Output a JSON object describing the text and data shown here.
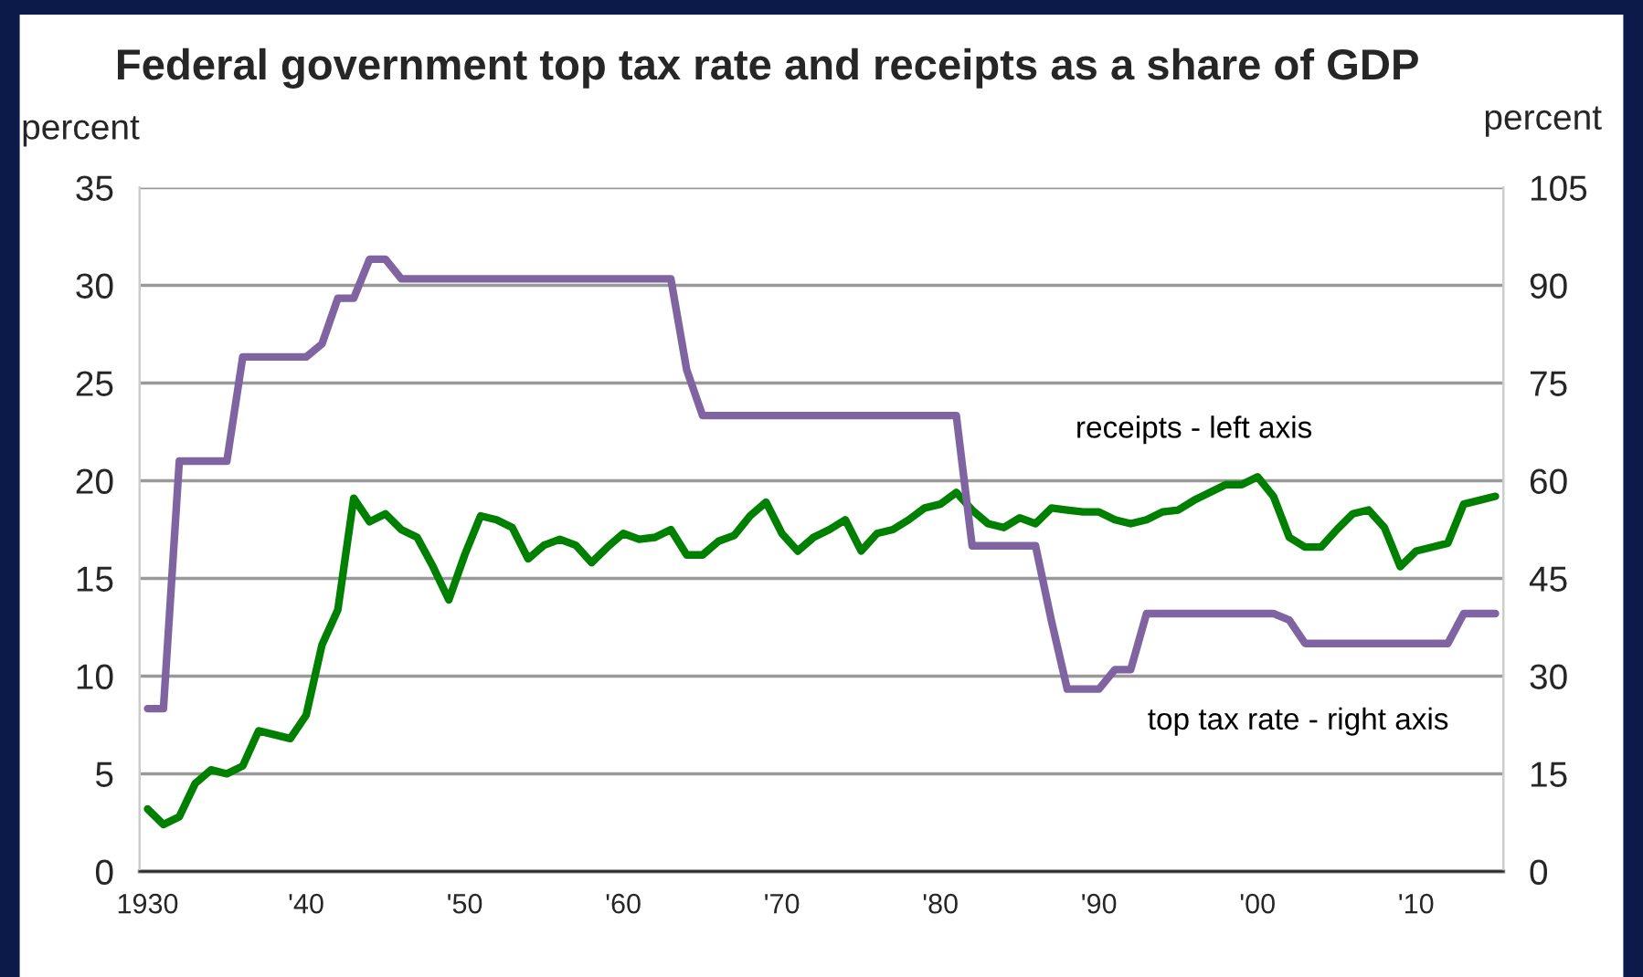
{
  "chart_data": {
    "type": "line",
    "title": "Federal government top tax rate and receipts as a share of GDP",
    "ylabel": "percent",
    "y2label": "percent",
    "x": [
      1930,
      1931,
      1932,
      1933,
      1934,
      1935,
      1936,
      1937,
      1938,
      1939,
      1940,
      1941,
      1942,
      1943,
      1944,
      1945,
      1946,
      1947,
      1948,
      1949,
      1950,
      1951,
      1952,
      1953,
      1954,
      1955,
      1956,
      1957,
      1958,
      1959,
      1960,
      1961,
      1962,
      1963,
      1964,
      1965,
      1966,
      1967,
      1968,
      1969,
      1970,
      1971,
      1972,
      1973,
      1974,
      1975,
      1976,
      1977,
      1978,
      1979,
      1980,
      1981,
      1982,
      1983,
      1984,
      1985,
      1986,
      1987,
      1988,
      1989,
      1990,
      1991,
      1992,
      1993,
      1994,
      1995,
      1996,
      1997,
      1998,
      1999,
      2000,
      2001,
      2002,
      2003,
      2004,
      2005,
      2006,
      2007,
      2008,
      2009,
      2010,
      2011,
      2012,
      2013,
      2014,
      2015
    ],
    "series": [
      {
        "name": "receipts - left axis",
        "color": "#008000",
        "values": [
          3.2,
          2.4,
          2.8,
          4.5,
          5.2,
          5.0,
          5.4,
          7.2,
          7.0,
          6.8,
          8.0,
          11.6,
          13.4,
          19.1,
          17.9,
          18.3,
          17.5,
          17.1,
          15.6,
          13.9,
          16.2,
          18.2,
          18.0,
          17.6,
          16.0,
          16.7,
          17.0,
          16.7,
          15.8,
          16.6,
          17.3,
          17.0,
          17.1,
          17.5,
          16.2,
          16.2,
          16.9,
          17.2,
          18.2,
          18.9,
          17.3,
          16.4,
          17.1,
          17.5,
          18.0,
          16.4,
          17.3,
          17.5,
          18.0,
          18.6,
          18.8,
          19.4,
          18.5,
          17.8,
          17.6,
          18.1,
          17.8,
          18.6,
          18.5,
          18.4,
          18.4,
          18.0,
          17.8,
          18.0,
          18.4,
          18.5,
          19.0,
          19.4,
          19.8,
          19.8,
          20.2,
          19.2,
          17.1,
          16.6,
          16.6,
          17.5,
          18.3,
          18.5,
          17.6,
          15.6,
          16.4,
          16.6,
          16.8,
          18.8,
          19.0,
          19.2
        ]
      },
      {
        "name": "top tax rate - right axis",
        "color": "#8064a2",
        "axis": "y2",
        "values": [
          25,
          25,
          63,
          63,
          63,
          63,
          79,
          79,
          79,
          79,
          79,
          81,
          88,
          88,
          94,
          94,
          91,
          91,
          91,
          91,
          91,
          91,
          91,
          91,
          91,
          91,
          91,
          91,
          91,
          91,
          91,
          91,
          91,
          91,
          77,
          70,
          70,
          70,
          70,
          70,
          70,
          70,
          70,
          70,
          70,
          70,
          70,
          70,
          70,
          70,
          70,
          70,
          50,
          50,
          50,
          50,
          50,
          38.5,
          28,
          28,
          28,
          31,
          31,
          39.6,
          39.6,
          39.6,
          39.6,
          39.6,
          39.6,
          39.6,
          39.6,
          39.6,
          38.6,
          35,
          35,
          35,
          35,
          35,
          35,
          35,
          35,
          35,
          35,
          39.6,
          39.6,
          39.6
        ]
      }
    ],
    "xlim": [
      1929.5,
      2015.5
    ],
    "xticks": [
      {
        "value": 1930,
        "label": "1930"
      },
      {
        "value": 1940,
        "label": "'40"
      },
      {
        "value": 1950,
        "label": "'50"
      },
      {
        "value": 1960,
        "label": "'60"
      },
      {
        "value": 1970,
        "label": "'70"
      },
      {
        "value": 1980,
        "label": "'80"
      },
      {
        "value": 1990,
        "label": "'90"
      },
      {
        "value": 2000,
        "label": "'00"
      },
      {
        "value": 2010,
        "label": "'10"
      }
    ],
    "ylim": [
      0,
      35
    ],
    "yticks": [
      0,
      5,
      10,
      15,
      20,
      25,
      30,
      35
    ],
    "y2lim": [
      0,
      105
    ],
    "y2ticks": [
      0,
      15,
      30,
      45,
      60,
      75,
      90,
      105
    ],
    "grid": "y",
    "legend": false,
    "marker": "none",
    "line_style": "solid"
  }
}
